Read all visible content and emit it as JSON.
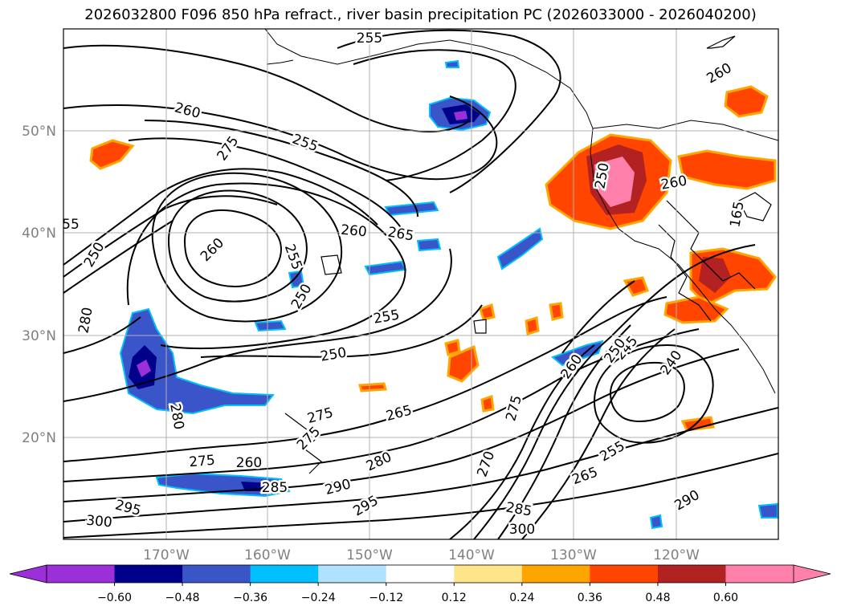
{
  "title": "2026032800 F096 850 hPa refract., river basin precipitation PC (2026033000 - 2026040200)",
  "map": {
    "lat_labels": [
      "50°N",
      "40°N",
      "30°N",
      "20°N"
    ],
    "lon_labels": [
      "170°W",
      "160°W",
      "150°W",
      "140°W",
      "130°W",
      "120°W"
    ],
    "grid": true,
    "contour_labels": [
      "255",
      "260",
      "275",
      "255",
      "260",
      "265",
      "260",
      "255",
      "250",
      "255",
      "250",
      "280",
      "280",
      "250",
      "275",
      "275",
      "265",
      "260",
      "245",
      "240",
      "250",
      "270",
      "275",
      "280",
      "290",
      "295",
      "285",
      "260",
      "265",
      "275",
      "255",
      "290",
      "300",
      "295",
      "300",
      "285",
      "260",
      "250",
      "260",
      "165",
      "55"
    ],
    "precip_pc_shaded": true
  },
  "colorbar": {
    "ticks": [
      "−0.60",
      "−0.48",
      "−0.36",
      "−0.24",
      "−0.12",
      "0.12",
      "0.24",
      "0.36",
      "0.48",
      "0.60"
    ],
    "colors": [
      "#9b30d8",
      "#00008b",
      "#3a55c8",
      "#00bfff",
      "#b0e2ff",
      "#ffffff",
      "#ffe58a",
      "#ffa500",
      "#ff4500",
      "#b22222",
      "#ff80ab"
    ],
    "extend": "both"
  }
}
